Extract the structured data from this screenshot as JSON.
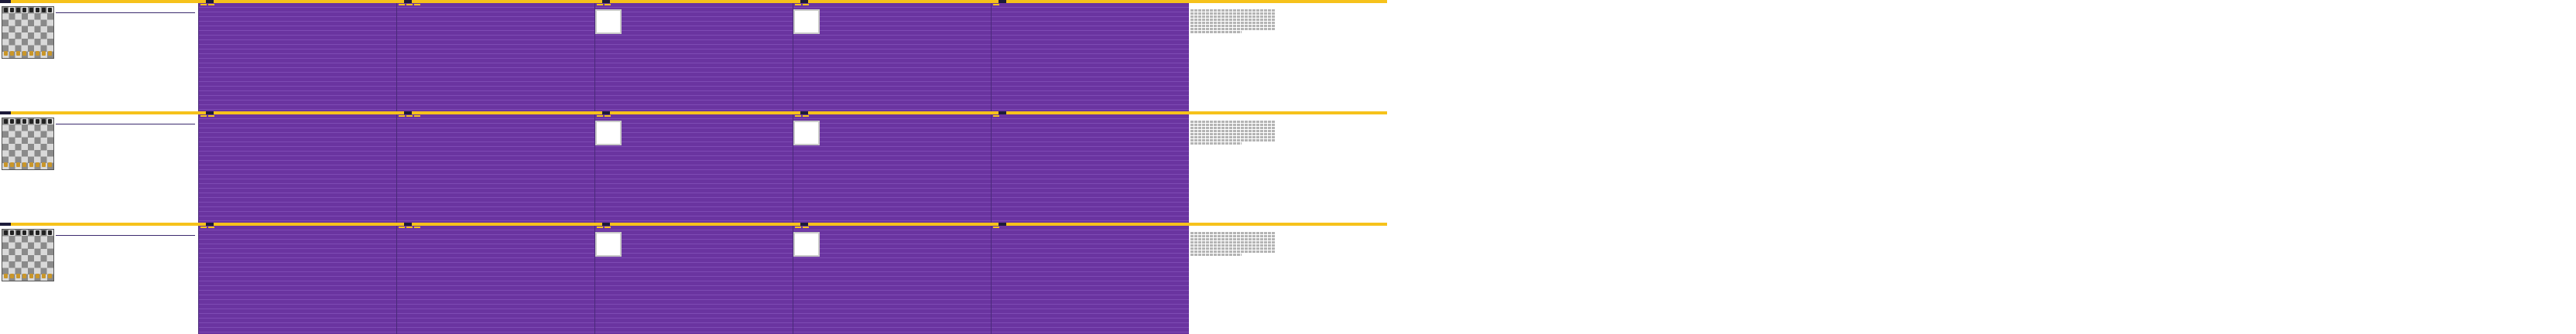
{
  "colors": {
    "accent": "#f6c21b",
    "purple": "#6a34a0",
    "dark": "#1d1b3a"
  },
  "bands": [
    {
      "player_line": "",
      "title": "",
      "opponent_line": "",
      "card_label": "",
      "right_title": "",
      "right_paragraph": ""
    },
    {
      "player_line": "",
      "title": "",
      "opponent_line": "",
      "card_label": "",
      "right_title": "",
      "right_paragraph": ""
    },
    {
      "player_line": "",
      "title": "",
      "opponent_line": "",
      "card_label": "",
      "right_title": "",
      "right_paragraph": ""
    }
  ],
  "icons": [
    "logo-icon",
    "chess-board-icon",
    "piece-icon"
  ]
}
